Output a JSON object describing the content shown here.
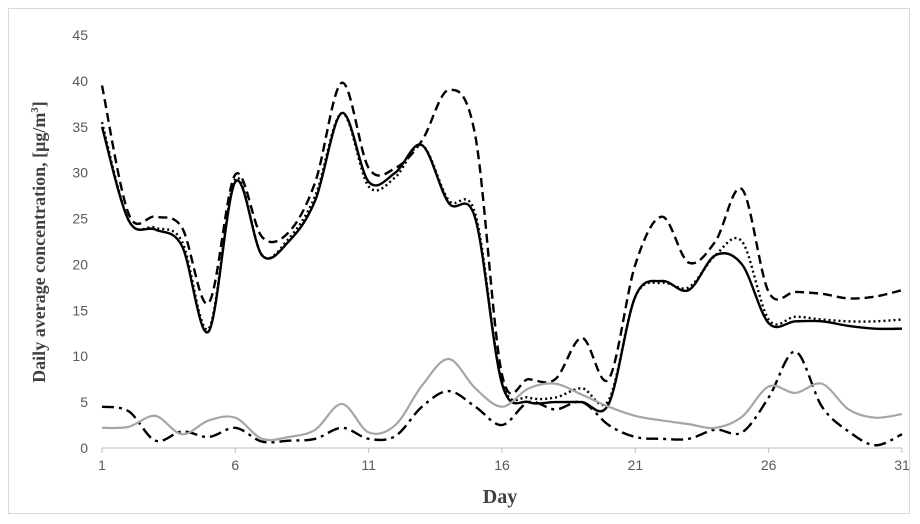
{
  "chart_data": {
    "type": "line",
    "title": "",
    "xlabel": "Day",
    "ylabel": "Daily average concentration, [μg/m³]",
    "ylabel_main": "Daily average concentration, [μg/m",
    "ylabel_sup": "3",
    "ylabel_end": "]",
    "xlim": [
      1,
      31
    ],
    "ylim": [
      0,
      45
    ],
    "x_ticks": [
      "1",
      "6",
      "11",
      "16",
      "21",
      "26",
      "31"
    ],
    "y_ticks": [
      "0",
      "5",
      "10",
      "15",
      "20",
      "25",
      "30",
      "35",
      "40",
      "45"
    ],
    "grid": "none",
    "legend": "none",
    "series": [
      {
        "style": "dashed",
        "color": "#000000",
        "x": [
          1,
          2,
          3,
          4,
          5,
          6,
          7,
          8,
          9,
          10,
          11,
          12,
          13,
          14,
          15,
          16,
          17,
          18,
          19,
          20,
          21,
          22,
          23,
          24,
          25,
          26,
          27,
          28,
          29,
          30,
          31
        ],
        "y": [
          39.5,
          25.5,
          25.2,
          24.0,
          15.8,
          29.8,
          23.0,
          23.5,
          29.0,
          39.8,
          30.5,
          30.5,
          33.5,
          39.0,
          34.0,
          8.0,
          7.5,
          7.5,
          12.0,
          7.5,
          20.0,
          25.2,
          20.2,
          22.5,
          28.2,
          17.0,
          17.0,
          16.8,
          16.3,
          16.5,
          17.2
        ]
      },
      {
        "style": "dotted",
        "color": "#000000",
        "x": [
          1,
          2,
          3,
          4,
          5,
          6,
          7,
          8,
          9,
          10,
          11,
          12,
          13,
          14,
          15,
          16,
          17,
          18,
          19,
          20,
          21,
          22,
          23,
          24,
          25,
          26,
          27,
          28,
          29,
          30,
          31
        ],
        "y": [
          35.5,
          24.8,
          24.0,
          22.5,
          13.0,
          29.3,
          21.0,
          22.8,
          27.5,
          36.5,
          28.5,
          29.5,
          33.0,
          27.0,
          25.5,
          7.2,
          5.5,
          5.5,
          6.5,
          5.2,
          16.5,
          18.0,
          17.5,
          21.0,
          22.5,
          14.0,
          14.3,
          14.0,
          13.8,
          13.8,
          14.0
        ]
      },
      {
        "style": "solid",
        "color": "#000000",
        "x": [
          1,
          2,
          3,
          4,
          5,
          6,
          7,
          8,
          9,
          10,
          11,
          12,
          13,
          14,
          15,
          16,
          17,
          18,
          19,
          20,
          21,
          22,
          23,
          24,
          25,
          26,
          27,
          28,
          29,
          30,
          31
        ],
        "y": [
          35.0,
          24.8,
          23.8,
          22.0,
          12.7,
          29.0,
          21.0,
          22.5,
          27.0,
          36.5,
          29.0,
          30.0,
          33.0,
          26.7,
          25.0,
          7.0,
          5.0,
          5.0,
          5.0,
          4.8,
          16.5,
          18.2,
          17.2,
          21.0,
          20.0,
          13.6,
          13.8,
          13.8,
          13.3,
          13.0,
          13.0
        ]
      },
      {
        "style": "dash-dot",
        "color": "#000000",
        "x": [
          1,
          2,
          3,
          4,
          5,
          6,
          7,
          8,
          9,
          10,
          11,
          12,
          13,
          14,
          15,
          16,
          17,
          18,
          19,
          20,
          21,
          22,
          23,
          24,
          25,
          26,
          27,
          28,
          29,
          30,
          31
        ],
        "y": [
          4.5,
          4.0,
          0.8,
          1.8,
          1.2,
          2.2,
          0.7,
          0.8,
          1.0,
          2.2,
          1.0,
          1.3,
          4.5,
          6.2,
          4.5,
          2.5,
          5.0,
          4.2,
          5.0,
          2.5,
          1.2,
          1.0,
          1.0,
          2.0,
          1.7,
          5.5,
          10.5,
          4.5,
          1.8,
          0.3,
          1.5
        ]
      },
      {
        "style": "solid",
        "color": "#a6a6a6",
        "x": [
          1,
          2,
          3,
          4,
          5,
          6,
          7,
          8,
          9,
          10,
          11,
          12,
          13,
          14,
          15,
          16,
          17,
          18,
          19,
          20,
          21,
          22,
          23,
          24,
          25,
          26,
          27,
          28,
          29,
          30,
          31
        ],
        "y": [
          2.2,
          2.3,
          3.5,
          1.5,
          3.0,
          3.3,
          1.0,
          1.2,
          2.0,
          4.8,
          1.7,
          2.5,
          6.8,
          9.7,
          6.5,
          4.5,
          6.5,
          7.0,
          5.8,
          4.5,
          3.5,
          3.0,
          2.6,
          2.2,
          3.4,
          6.7,
          6.0,
          7.0,
          4.2,
          3.3,
          3.7
        ]
      }
    ]
  }
}
